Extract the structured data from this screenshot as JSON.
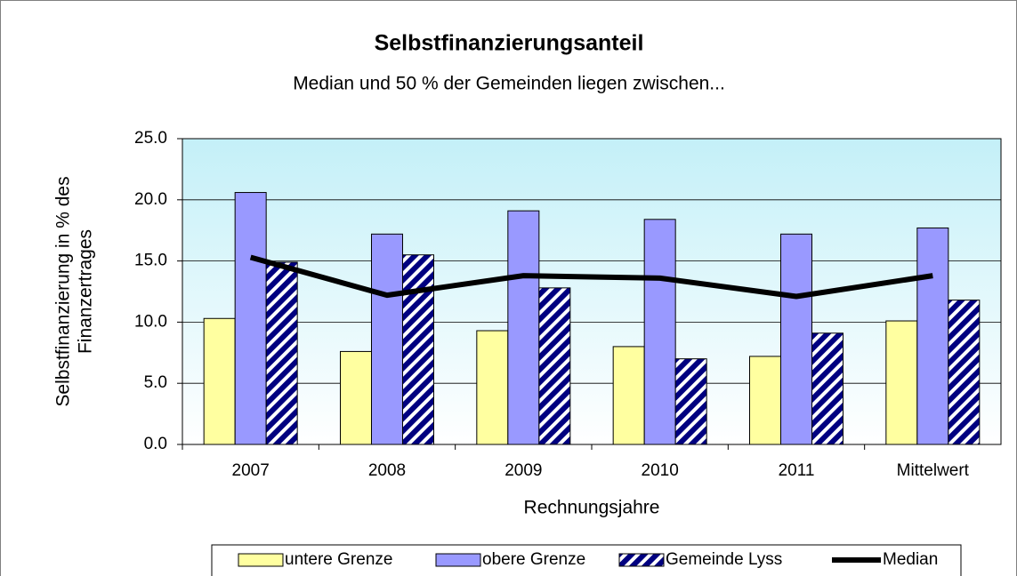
{
  "chart_data": {
    "type": "bar",
    "title": "Selbstfinanzierungsanteil",
    "subtitle": "Median und 50 % der Gemeinden liegen zwischen...",
    "x_label": "Rechnungsjahre",
    "y_label": [
      "Selbstfinanzierung in % des",
      "Finanzertrages"
    ],
    "categories": [
      "2007",
      "2008",
      "2009",
      "2010",
      "2011",
      "Mittelwert"
    ],
    "series": [
      {
        "name": "untere Grenze",
        "color": "#ffffa0",
        "values": [
          10.3,
          7.6,
          9.3,
          8.0,
          7.2,
          10.1
        ]
      },
      {
        "name": "obere Grenze",
        "color": "#9999ff",
        "values": [
          20.6,
          17.2,
          19.1,
          18.4,
          17.2,
          17.7
        ]
      },
      {
        "name": "Gemeinde Lyss",
        "color": "#000080",
        "pattern": "hatch",
        "values": [
          14.9,
          15.5,
          12.8,
          7.0,
          9.1,
          11.8
        ]
      },
      {
        "name": "Median",
        "color": "#000000",
        "type": "line",
        "values": [
          15.3,
          12.2,
          13.8,
          13.6,
          12.1,
          13.8
        ]
      }
    ],
    "ylim": [
      0,
      25
    ],
    "yticks": [
      {
        "value": 0,
        "label": "0.0"
      },
      {
        "value": 5,
        "label": "5.0"
      },
      {
        "value": 10,
        "label": "10.0"
      },
      {
        "value": 15,
        "label": "15.0"
      },
      {
        "value": 20,
        "label": "20.0"
      },
      {
        "value": 25,
        "label": "25.0"
      }
    ],
    "grid": true,
    "legend": "bottom"
  }
}
